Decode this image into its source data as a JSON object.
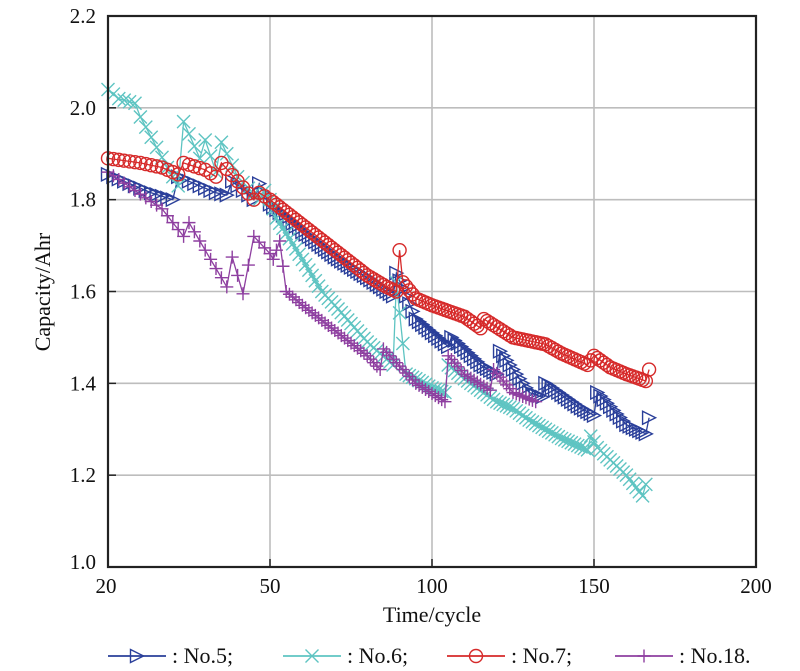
{
  "chart_data": {
    "type": "line",
    "title": "",
    "xlabel": "Time/cycle",
    "ylabel": "Capacity/Ahr",
    "x_ticks": [
      20,
      50,
      100,
      150,
      200
    ],
    "x_tick_labels": [
      "20",
      "50",
      "100",
      "150",
      "200"
    ],
    "y_ticks": [
      1.0,
      1.2,
      1.4,
      1.6,
      1.8,
      2.0,
      2.2
    ],
    "y_tick_labels": [
      "1.0",
      "1.2",
      "1.4",
      "1.6",
      "1.8",
      "2.0",
      "2.2"
    ],
    "xlim": [
      20,
      200
    ],
    "ylim": [
      1.0,
      2.2
    ],
    "grid": true,
    "legend_position": "bottom",
    "series": [
      {
        "name": "No.5",
        "legend_label": ": No.5;",
        "color": "#2a3f9a",
        "marker": "triangle-right",
        "keyframes": [
          [
            20,
            1.855
          ],
          [
            28,
            1.815
          ],
          [
            32,
            1.8
          ],
          [
            33,
            1.85
          ],
          [
            40,
            1.815
          ],
          [
            42,
            1.81
          ],
          [
            43,
            1.84
          ],
          [
            47,
            1.8
          ],
          [
            48,
            1.835
          ],
          [
            50,
            1.79
          ],
          [
            60,
            1.73
          ],
          [
            70,
            1.675
          ],
          [
            80,
            1.63
          ],
          [
            88,
            1.59
          ],
          [
            89,
            1.64
          ],
          [
            95,
            1.54
          ],
          [
            100,
            1.51
          ],
          [
            105,
            1.48
          ],
          [
            106,
            1.5
          ],
          [
            115,
            1.44
          ],
          [
            120,
            1.42
          ],
          [
            121,
            1.47
          ],
          [
            130,
            1.38
          ],
          [
            134,
            1.37
          ],
          [
            135,
            1.4
          ],
          [
            145,
            1.35
          ],
          [
            150,
            1.33
          ],
          [
            151,
            1.38
          ],
          [
            160,
            1.31
          ],
          [
            166,
            1.29
          ],
          [
            167,
            1.325
          ]
        ]
      },
      {
        "name": "No.6",
        "legend_label": ": No.6;",
        "color": "#5ec4c2",
        "marker": "x",
        "keyframes": [
          [
            20,
            2.04
          ],
          [
            22,
            2.02
          ],
          [
            25,
            2.01
          ],
          [
            26,
            1.98
          ],
          [
            31,
            1.87
          ],
          [
            33,
            1.83
          ],
          [
            34,
            1.97
          ],
          [
            37,
            1.89
          ],
          [
            38,
            1.93
          ],
          [
            40,
            1.86
          ],
          [
            41,
            1.925
          ],
          [
            44,
            1.85
          ],
          [
            48,
            1.8
          ],
          [
            49,
            1.82
          ],
          [
            52,
            1.76
          ],
          [
            60,
            1.67
          ],
          [
            66,
            1.6
          ],
          [
            70,
            1.57
          ],
          [
            80,
            1.49
          ],
          [
            88,
            1.44
          ],
          [
            89,
            1.62
          ],
          [
            92,
            1.42
          ],
          [
            95,
            1.41
          ],
          [
            100,
            1.39
          ],
          [
            104,
            1.38
          ],
          [
            105,
            1.44
          ],
          [
            110,
            1.41
          ],
          [
            120,
            1.36
          ],
          [
            125,
            1.345
          ],
          [
            130,
            1.32
          ],
          [
            140,
            1.28
          ],
          [
            148,
            1.255
          ],
          [
            149,
            1.285
          ],
          [
            151,
            1.26
          ],
          [
            160,
            1.2
          ],
          [
            165,
            1.155
          ],
          [
            166,
            1.18
          ]
        ]
      },
      {
        "name": "No.7",
        "legend_label": ": No.7;",
        "color": "#d62a2a",
        "marker": "circle",
        "keyframes": [
          [
            20,
            1.89
          ],
          [
            26,
            1.88
          ],
          [
            30,
            1.87
          ],
          [
            33,
            1.855
          ],
          [
            34,
            1.88
          ],
          [
            38,
            1.865
          ],
          [
            40,
            1.85
          ],
          [
            41,
            1.88
          ],
          [
            44,
            1.84
          ],
          [
            47,
            1.8
          ],
          [
            48,
            1.815
          ],
          [
            50,
            1.8
          ],
          [
            60,
            1.745
          ],
          [
            70,
            1.69
          ],
          [
            80,
            1.635
          ],
          [
            86,
            1.61
          ],
          [
            89,
            1.6
          ],
          [
            90,
            1.69
          ],
          [
            91,
            1.62
          ],
          [
            95,
            1.585
          ],
          [
            100,
            1.57
          ],
          [
            110,
            1.545
          ],
          [
            115,
            1.52
          ],
          [
            116,
            1.54
          ],
          [
            125,
            1.5
          ],
          [
            135,
            1.485
          ],
          [
            140,
            1.465
          ],
          [
            148,
            1.44
          ],
          [
            150,
            1.46
          ],
          [
            155,
            1.435
          ],
          [
            160,
            1.42
          ],
          [
            166,
            1.405
          ],
          [
            167,
            1.43
          ]
        ]
      },
      {
        "name": "No.18",
        "legend_label": ": No.18.",
        "color": "#8e3fa0",
        "marker": "plus",
        "keyframes": [
          [
            20,
            1.86
          ],
          [
            25,
            1.82
          ],
          [
            30,
            1.78
          ],
          [
            34,
            1.72
          ],
          [
            35,
            1.75
          ],
          [
            38,
            1.69
          ],
          [
            42,
            1.61
          ],
          [
            43,
            1.675
          ],
          [
            45,
            1.595
          ],
          [
            47,
            1.72
          ],
          [
            51,
            1.67
          ],
          [
            53,
            1.71
          ],
          [
            55,
            1.6
          ],
          [
            60,
            1.57
          ],
          [
            70,
            1.515
          ],
          [
            80,
            1.46
          ],
          [
            84,
            1.43
          ],
          [
            85,
            1.475
          ],
          [
            95,
            1.4
          ],
          [
            104,
            1.36
          ],
          [
            105,
            1.46
          ],
          [
            110,
            1.42
          ],
          [
            118,
            1.385
          ],
          [
            119,
            1.43
          ],
          [
            125,
            1.38
          ],
          [
            132,
            1.36
          ]
        ]
      }
    ]
  }
}
